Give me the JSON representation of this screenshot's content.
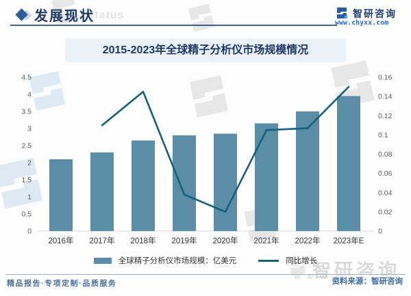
{
  "header": {
    "section_title": "发展现状",
    "section_watermark": "ent status",
    "brand_name": "智研咨询",
    "brand_url": "www.chyxx.com"
  },
  "chart": {
    "title": "2015-2023年全球精子分析仪市场规模情况",
    "legend": {
      "bars": "全球精子分析仪市场规模：亿美元",
      "line": "同比增长"
    }
  },
  "chart_data": {
    "type": "bar",
    "title": "2015-2023年全球精子分析仪市场规模情况",
    "categories": [
      "2016年",
      "2017年",
      "2018年",
      "2019年",
      "2020年",
      "2021年",
      "2022年",
      "2023年E"
    ],
    "series": [
      {
        "name": "全球精子分析仪市场规模：亿美元",
        "type": "bar",
        "axis": "left",
        "values": [
          2.1,
          2.3,
          2.65,
          2.8,
          2.85,
          3.15,
          3.5,
          3.95
        ]
      },
      {
        "name": "同比增长",
        "type": "line",
        "axis": "right",
        "values": [
          null,
          0.11,
          0.145,
          0.038,
          0.02,
          0.105,
          0.107,
          0.15
        ]
      }
    ],
    "left_axis": {
      "min": 0,
      "max": 4.5,
      "tick_labels": [
        "0",
        "0.5",
        "1",
        "1.5",
        "2",
        "2.5",
        "3",
        "3.5",
        "4",
        "4.5"
      ]
    },
    "right_axis": {
      "min": 0,
      "max": 0.16,
      "tick_labels": [
        "0",
        "0.02",
        "0.04",
        "0.06",
        "0.08",
        "0.1",
        "0.12",
        "0.14",
        "0.16"
      ]
    },
    "grid": false,
    "legend_position": "bottom",
    "colors": {
      "bar": "#5b8da6",
      "line": "#16607e",
      "axis_line": "#d9d9d9"
    }
  },
  "footer": {
    "left": "精品报告·专项定制·品质服务",
    "right": "资料来源：智研咨询"
  },
  "watermark": {
    "brand": "智研咨询",
    "www": "w w w ."
  }
}
